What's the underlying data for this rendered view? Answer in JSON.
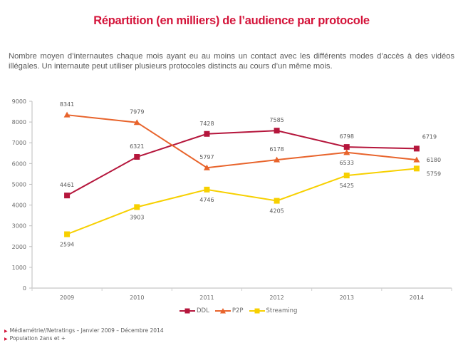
{
  "header": {
    "title": "Répartition (en milliers) de l’audience par protocole",
    "subtitle": "Nombre moyen d’internautes chaque mois ayant eu au moins un contact avec les différents modes d’accès à des vidéos illégales. Un internaute peut utiliser plusieurs protocoles distincts au cours d’un même mois."
  },
  "chart_data": {
    "type": "line",
    "title": "Répartition (en milliers) de l’audience par protocole",
    "xlabel": "",
    "ylabel": "",
    "categories": [
      "2009",
      "2010",
      "2011",
      "2012",
      "2013",
      "2014"
    ],
    "ylim": [
      0,
      9000
    ],
    "yticks": [
      "0",
      "1000",
      "2000",
      "3000",
      "4000",
      "5000",
      "6000",
      "7000",
      "8000",
      "9000"
    ],
    "grid": false,
    "legend_position": "bottom",
    "series": [
      {
        "name": "DDL",
        "color": "#b5163c",
        "marker": "square",
        "values": [
          4461,
          6321,
          7428,
          7585,
          6798,
          6719
        ],
        "labels": [
          "4461",
          "6321",
          "7428",
          "7585",
          "6798",
          "6719"
        ]
      },
      {
        "name": "P2P",
        "color": "#e8642c",
        "marker": "triangle",
        "values": [
          8341,
          7979,
          5797,
          6178,
          6533,
          6180
        ],
        "labels": [
          "8341",
          "7979",
          "5797",
          "6178",
          "6533",
          "6180"
        ]
      },
      {
        "name": "Streaming",
        "color": "#f7d000",
        "marker": "square",
        "values": [
          2594,
          3903,
          4746,
          4205,
          5425,
          5759
        ],
        "labels": [
          "2594",
          "3903",
          "4746",
          "4205",
          "5425",
          "5759"
        ]
      }
    ]
  },
  "footer": {
    "notes": [
      "Médiamétrie//Netratings – Janvier 2009 – Décembre  2014",
      "Population 2ans et +"
    ],
    "bullet_color": "#d4143a"
  }
}
